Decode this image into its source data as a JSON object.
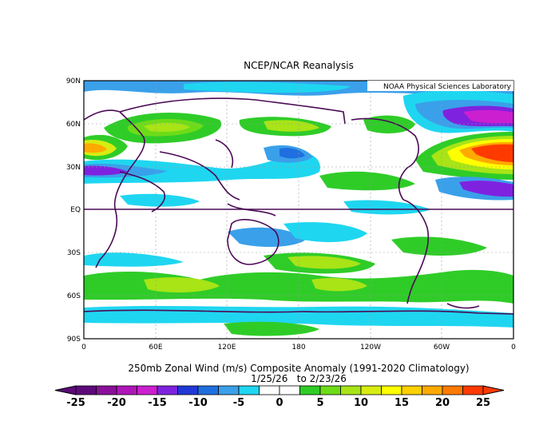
{
  "header": {
    "title": "NCEP/NCAR Reanalysis"
  },
  "map": {
    "credit": "NOAA Physical Sciences Laboratory",
    "lat_labels": [
      "90N",
      "60N",
      "30N",
      "EQ",
      "30S",
      "60S",
      "90S"
    ],
    "lon_labels": [
      "0",
      "60E",
      "120E",
      "180",
      "120W",
      "60W",
      "0"
    ]
  },
  "caption": {
    "line1": "250mb Zonal Wind (m/s) Composite Anomaly (1991-2020 Climatology)",
    "line2": "1/25/26   to 2/23/26"
  },
  "colorbar": {
    "labels": [
      "-25",
      "-20",
      "-15",
      "-10",
      "-5",
      "0",
      "5",
      "10",
      "15",
      "20",
      "25"
    ],
    "colors": [
      "#5c0a78",
      "#8a0f9a",
      "#b015b8",
      "#cc1fd0",
      "#7f22e0",
      "#2038d8",
      "#1f6fe0",
      "#3aa0ea",
      "#1fd6f0",
      "#ffffff",
      "#ffffff",
      "#2fcc28",
      "#6ddc18",
      "#a8e416",
      "#d8ec12",
      "#ffff00",
      "#ffd000",
      "#ffaa00",
      "#ff7a00",
      "#ff3a00"
    ]
  }
}
